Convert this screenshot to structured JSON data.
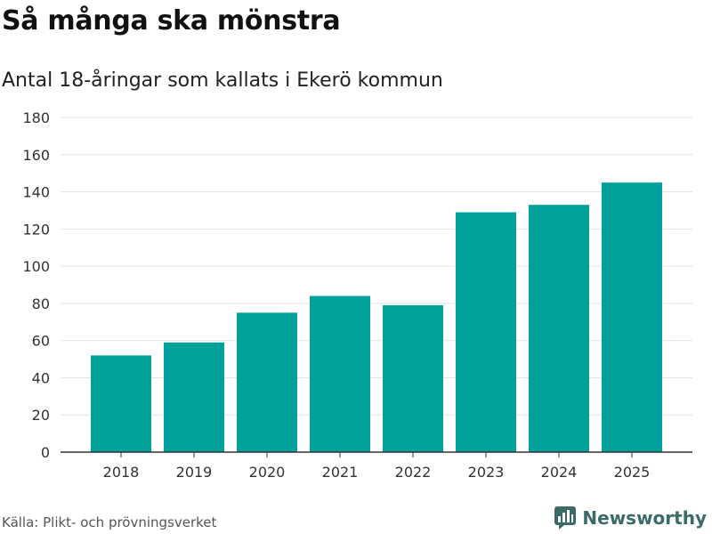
{
  "header": {
    "title": "Så många ska mönstra",
    "subtitle": "Antal 18-åringar som kallats i Ekerö kommun"
  },
  "footer": {
    "source": "Källa: Plikt- och prövningsverket",
    "brand": "Newsworthy"
  },
  "colors": {
    "bar": "#00a19a",
    "grid": "#e3e3e3",
    "axis": "#333333",
    "brand": "#3a6b68"
  },
  "chart_data": {
    "type": "bar",
    "title": "Så många ska mönstra",
    "subtitle": "Antal 18-åringar som kallats i Ekerö kommun",
    "categories": [
      "2018",
      "2019",
      "2020",
      "2021",
      "2022",
      "2023",
      "2024",
      "2025"
    ],
    "values": [
      52,
      59,
      75,
      84,
      79,
      129,
      133,
      145
    ],
    "ylim": [
      0,
      180
    ],
    "yticks": [
      0,
      20,
      40,
      60,
      80,
      100,
      120,
      140,
      160,
      180
    ],
    "xlabel": "",
    "ylabel": "",
    "grid": true
  }
}
